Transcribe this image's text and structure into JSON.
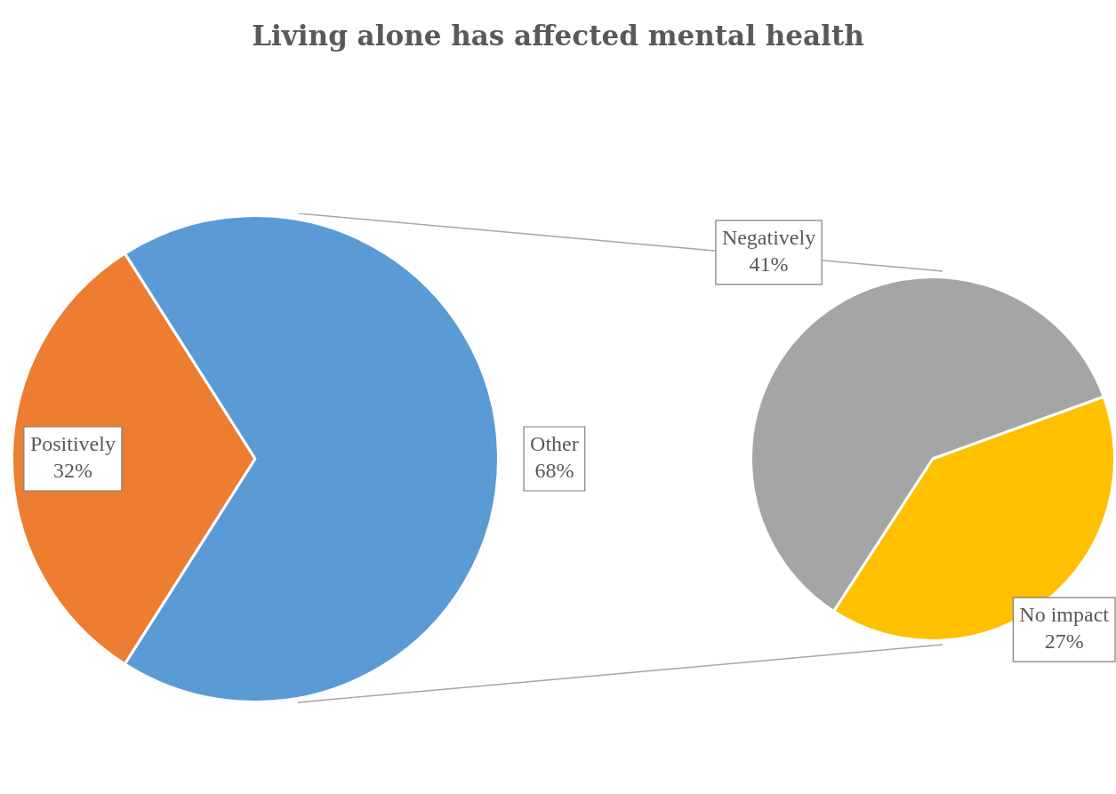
{
  "chart_data": [
    {
      "type": "pie",
      "title": "Living alone has affected mental health",
      "categories": [
        "Positively",
        "Other"
      ],
      "values": [
        32,
        68
      ],
      "colors": [
        "#ed7d31",
        "#5b9bd5"
      ],
      "value_labels": [
        "32%",
        "68%"
      ]
    },
    {
      "type": "pie",
      "categories": [
        "Negatively",
        "No impact"
      ],
      "values": [
        41,
        27
      ],
      "colors": [
        "#a5a5a5",
        "#ffc000"
      ],
      "value_labels": [
        "41%",
        "27%"
      ]
    }
  ]
}
